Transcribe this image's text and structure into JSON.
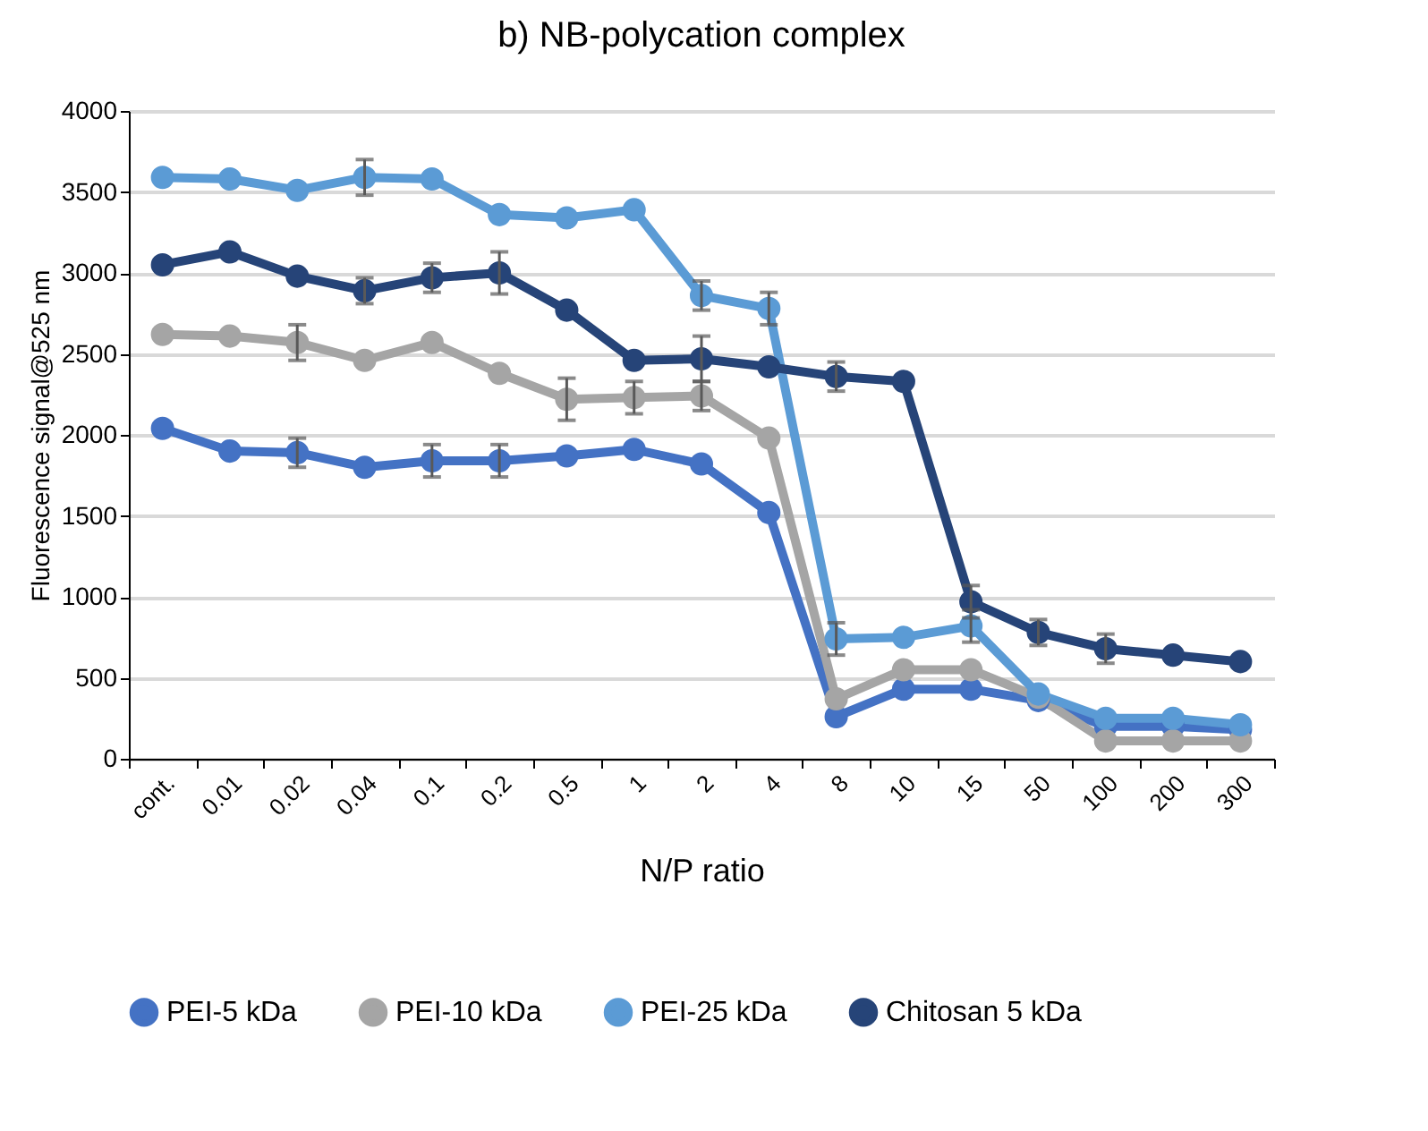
{
  "chart_data": {
    "type": "line",
    "title": "b) NB-polycation complex",
    "xlabel": "N/P ratio",
    "ylabel": "Fluorescence signal@525 nm",
    "categories": [
      "cont.",
      "0.01",
      "0.02",
      "0.04",
      "0.1",
      "0.2",
      "0.5",
      "1",
      "2",
      "4",
      "8",
      "10",
      "15",
      "50",
      "100",
      "200",
      "300"
    ],
    "ylim": [
      0,
      4000
    ],
    "yticks": [
      0,
      500,
      1000,
      1500,
      2000,
      2500,
      3000,
      3500,
      4000
    ],
    "grid": "y",
    "legend": "bottom",
    "marker": "circle",
    "line_style": "solid",
    "series": [
      {
        "name": "PEI-5 kDa",
        "color": "#4472c4",
        "values": [
          2040,
          1900,
          1890,
          1800,
          1840,
          1840,
          1870,
          1910,
          1820,
          1520,
          260,
          430,
          430,
          360,
          200,
          200,
          180
        ],
        "errors": [
          null,
          null,
          90,
          null,
          100,
          100,
          null,
          null,
          null,
          null,
          null,
          null,
          null,
          null,
          null,
          null,
          null
        ]
      },
      {
        "name": "PEI-10 kDa",
        "color": "#a5a5a5",
        "values": [
          2620,
          2610,
          2570,
          2460,
          2570,
          2380,
          2220,
          2230,
          2240,
          1980,
          370,
          550,
          550,
          380,
          110,
          110,
          110
        ],
        "errors": [
          null,
          null,
          110,
          null,
          null,
          null,
          130,
          100,
          90,
          null,
          null,
          null,
          null,
          null,
          null,
          null,
          null
        ]
      },
      {
        "name": "PEI-25 kDa",
        "color": "#5b9bd5",
        "values": [
          3590,
          3580,
          3510,
          3590,
          3580,
          3360,
          3340,
          3390,
          2860,
          2780,
          740,
          750,
          820,
          400,
          250,
          250,
          210
        ],
        "errors": [
          null,
          null,
          null,
          110,
          null,
          null,
          null,
          null,
          90,
          100,
          100,
          null,
          100,
          null,
          null,
          null,
          null
        ]
      },
      {
        "name": "Chitosan 5 kDa",
        "color": "#264478",
        "values": [
          3050,
          3130,
          2980,
          2890,
          2970,
          3000,
          2770,
          2460,
          2470,
          2420,
          2360,
          2330,
          970,
          780,
          680,
          640,
          600
        ],
        "errors": [
          null,
          null,
          null,
          80,
          90,
          130,
          null,
          null,
          140,
          null,
          90,
          null,
          100,
          80,
          90,
          null,
          null
        ]
      }
    ]
  }
}
